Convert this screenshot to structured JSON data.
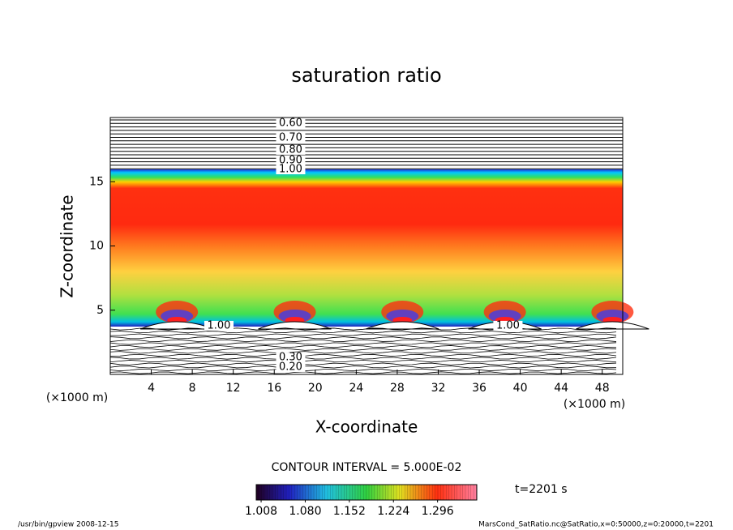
{
  "chart_data": {
    "type": "contour",
    "title": "saturation ratio",
    "x_label": "X-coordinate",
    "y_label": "Z-coordinate",
    "x_unit": "(×1000 m)",
    "y_unit": "(×1000 m)",
    "xlim": [
      0,
      50
    ],
    "ylim": [
      0,
      20
    ],
    "xticks": [
      4,
      8,
      12,
      16,
      20,
      24,
      28,
      32,
      36,
      40,
      44,
      48
    ],
    "yticks": [
      5,
      10,
      15
    ],
    "contour_labels": [
      {
        "value": 0.6,
        "label": "0.60",
        "x": 17.6,
        "z": 19.56
      },
      {
        "value": 0.7,
        "label": "0.70",
        "x": 17.6,
        "z": 18.42
      },
      {
        "value": 0.8,
        "label": "0.80",
        "x": 17.6,
        "z": 17.48
      },
      {
        "value": 0.9,
        "label": "0.90",
        "x": 17.6,
        "z": 16.66
      },
      {
        "value": 1.0,
        "label": "1.00",
        "x": 17.6,
        "z": 15.96
      },
      {
        "value": 1.0,
        "label": "1.00",
        "x": 10.6,
        "z": 3.79
      },
      {
        "value": 1.0,
        "label": "1.00",
        "x": 38.8,
        "z": 3.79
      },
      {
        "value": 0.3,
        "label": "0.30",
        "x": 17.6,
        "z": 1.32
      },
      {
        "value": 0.2,
        "label": "0.20",
        "x": 17.6,
        "z": 0.57
      }
    ],
    "contour_interval": "CONTOUR INTERVAL = 5.000E-02",
    "colorbar": {
      "lim": [
        1.0,
        1.36
      ],
      "ticks": [
        1.008,
        {
          "value": 1.08,
          "label": "1.080"
        },
        1.152,
        1.224,
        1.296
      ]
    },
    "time_label": "t=2201 s",
    "footer_left": "/usr/bin/gpview  2008-12-15",
    "footer_right": "MarsCond_SatRatio.nc@SatRatio,x=0:50000,z=0:20000,t=2201"
  }
}
